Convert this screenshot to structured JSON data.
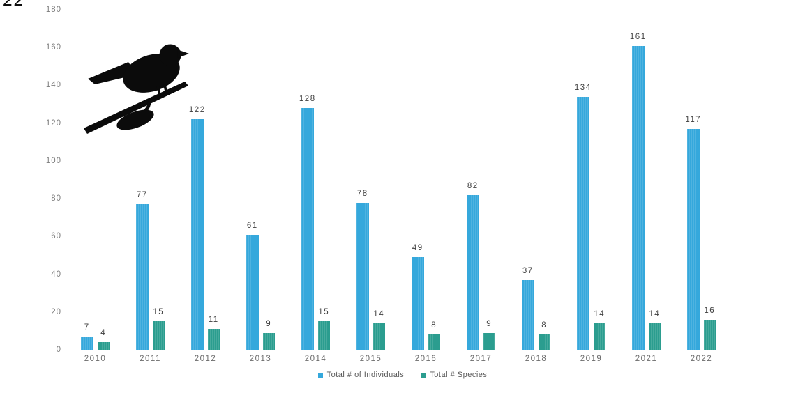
{
  "page": {
    "corner_text": "22"
  },
  "decoration": {
    "bird_image": "bird-on-branch-silhouette",
    "bird_color": "#0b0b0b"
  },
  "chart_data": {
    "type": "bar",
    "title": "",
    "xlabel": "",
    "ylabel": "",
    "categories": [
      "2010",
      "2011",
      "2012",
      "2013",
      "2014",
      "2015",
      "2016",
      "2017",
      "2018",
      "2019",
      "2021",
      "2022"
    ],
    "series": [
      {
        "name": "Total # of Individuals",
        "color": "#35A8DC",
        "values": [
          7,
          77,
          122,
          61,
          128,
          78,
          49,
          82,
          37,
          134,
          161,
          117
        ]
      },
      {
        "name": "Total # Species",
        "color": "#2B9D8F",
        "values": [
          4,
          15,
          11,
          9,
          15,
          14,
          8,
          9,
          8,
          14,
          14,
          16
        ]
      }
    ],
    "ylim": [
      0,
      180
    ],
    "yticks": [
      0,
      20,
      40,
      60,
      80,
      100,
      120,
      140,
      160,
      180
    ],
    "grid": false,
    "data_labels": true,
    "legend_position": "bottom",
    "colors": {
      "axis_line": "#c9c9c9",
      "ytick_label": "#7d7d7d",
      "xtick_label": "#6b6b6b",
      "data_label": "#3f3f3f",
      "legend_text": "#595959"
    }
  }
}
